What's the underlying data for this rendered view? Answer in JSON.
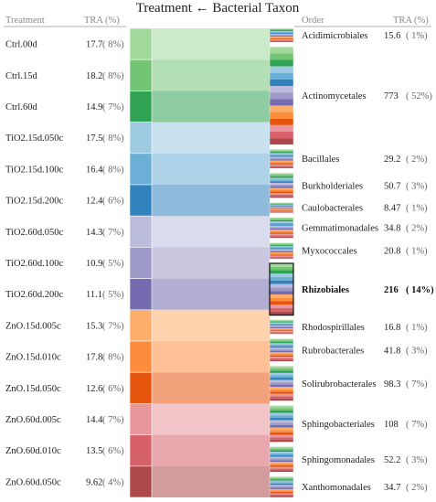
{
  "chart_data": {
    "type": "alluvial",
    "title": "Treatment ← Bacterial Taxon",
    "left_header": {
      "name": "Treatment",
      "value": "TRA (%)"
    },
    "right_header": {
      "name": "Order",
      "value": "TRA (%)"
    },
    "treatments": [
      {
        "name": "Ctrl.00d",
        "tra": "17.7",
        "pct": "( 8%)",
        "color": "#a1d99b"
      },
      {
        "name": "Ctrl.15d",
        "tra": "18.2",
        "pct": "( 8%)",
        "color": "#74c476"
      },
      {
        "name": "Ctrl.60d",
        "tra": "14.9",
        "pct": "( 7%)",
        "color": "#31a354"
      },
      {
        "name": "TiO2.15d.050c",
        "tra": "17.5",
        "pct": "( 8%)",
        "color": "#9ecae1"
      },
      {
        "name": "TiO2.15d.100c",
        "tra": "16.4",
        "pct": "( 8%)",
        "color": "#6baed6"
      },
      {
        "name": "TiO2.15d.200c",
        "tra": "12.4",
        "pct": "( 6%)",
        "color": "#3182bd"
      },
      {
        "name": "TiO2.60d.050c",
        "tra": "14.3",
        "pct": "( 7%)",
        "color": "#bcbddc"
      },
      {
        "name": "TiO2.60d.100c",
        "tra": "10.9",
        "pct": "( 5%)",
        "color": "#9e9ac8"
      },
      {
        "name": "TiO2.60d.200c",
        "tra": "11.1",
        "pct": "( 5%)",
        "color": "#756bb1"
      },
      {
        "name": "ZnO.15d.005c",
        "tra": "15.3",
        "pct": "( 7%)",
        "color": "#fdae6b"
      },
      {
        "name": "ZnO.15d.010c",
        "tra": "17.8",
        "pct": "( 8%)",
        "color": "#fd8d3c"
      },
      {
        "name": "ZnO.15d.050c",
        "tra": "12.6",
        "pct": "( 6%)",
        "color": "#e6550d"
      },
      {
        "name": "ZnO.60d.005c",
        "tra": "14.4",
        "pct": "( 7%)",
        "color": "#e7969c"
      },
      {
        "name": "ZnO.60d.010c",
        "tra": "13.5",
        "pct": "( 6%)",
        "color": "#d6616b"
      },
      {
        "name": "ZnO.60d.050c",
        "tra": "9.62",
        "pct": "( 4%)",
        "color": "#ad494a"
      }
    ],
    "orders": [
      {
        "name": "Acidimicrobiales",
        "tra": "15.6",
        "pct": "( 1%)",
        "value": 15.6,
        "highlight": false
      },
      {
        "name": "Actinomycetales",
        "tra": "773",
        "pct": "( 52%)",
        "value": 773,
        "highlight": false
      },
      {
        "name": "Bacillales",
        "tra": "29.2",
        "pct": "( 2%)",
        "value": 29.2,
        "highlight": false
      },
      {
        "name": "Burkholderiales",
        "tra": "50.7",
        "pct": "( 3%)",
        "value": 50.7,
        "highlight": false
      },
      {
        "name": "Caulobacterales",
        "tra": "8.47",
        "pct": "( 1%)",
        "value": 8.47,
        "highlight": false
      },
      {
        "name": "Gemmatimonadales",
        "tra": "34.8",
        "pct": "( 2%)",
        "value": 34.8,
        "highlight": false
      },
      {
        "name": "Myxococcales",
        "tra": "20.8",
        "pct": "( 1%)",
        "value": 20.8,
        "highlight": false
      },
      {
        "name": "Rhizobiales",
        "tra": "216",
        "pct": "( 14%)",
        "value": 216,
        "highlight": true
      },
      {
        "name": "Rhodospirillales",
        "tra": "16.8",
        "pct": "( 1%)",
        "value": 16.8,
        "highlight": false
      },
      {
        "name": "Rubrobacterales",
        "tra": "41.8",
        "pct": "( 3%)",
        "value": 41.8,
        "highlight": false
      },
      {
        "name": "Solirubrobacterales",
        "tra": "98.3",
        "pct": "( 7%)",
        "value": 98.3,
        "highlight": false
      },
      {
        "name": "Sphingobacteriales",
        "tra": "108",
        "pct": "( 7%)",
        "value": 108,
        "highlight": false
      },
      {
        "name": "Sphingomonadales",
        "tra": "52.2",
        "pct": "( 3%)",
        "value": 52.2,
        "highlight": false
      },
      {
        "name": "Xanthomonadales",
        "tra": "34.7",
        "pct": "( 2%)",
        "value": 34.7,
        "highlight": false
      }
    ]
  }
}
